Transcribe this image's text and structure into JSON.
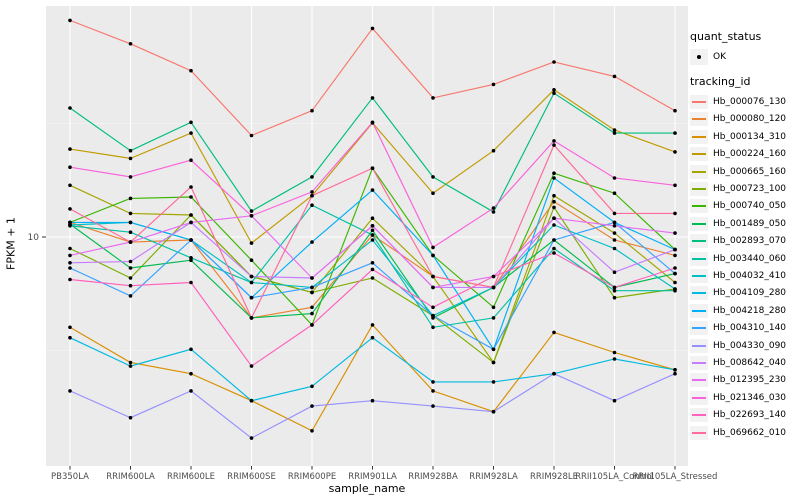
{
  "figure": {
    "y_axis": {
      "label": "FPKM + 1",
      "tick_labels": [
        "10"
      ],
      "tick_values": [
        10
      ]
    },
    "x_axis": {
      "label": "sample_name"
    },
    "legend": {
      "quant_title": "quant_status",
      "quant_items": [
        {
          "label": "OK"
        }
      ],
      "tracking_title": "tracking_id"
    }
  },
  "colors": {
    "panel_bg": "#EBEBEB",
    "grid": "#FFFFFF",
    "tick": "#333333",
    "axis_text": "#4D4D4D",
    "marker": "#000000",
    "legend_key_bg": "#F2F2F2"
  },
  "chart_data": {
    "type": "line",
    "title": "",
    "xlabel": "sample_name",
    "ylabel": "FPKM + 1",
    "y_scale": "log10",
    "ylim": [
      1,
      100
    ],
    "grid": "vertical-major-and-y10",
    "legend_position": "right",
    "marker": "black-point",
    "quant_status": "OK",
    "categories": [
      "PB350LA",
      "RRIM600LA",
      "RRIM600LE",
      "RRIM600SE",
      "RRIM600PE",
      "RRIM901LA",
      "RRIM928BA",
      "RRIM928LA",
      "RRIM928LE",
      "RRII105LA_Control",
      "RRII105LA_Stressed"
    ],
    "series": [
      {
        "name": "Hb_000076_130",
        "color": "#F8766D",
        "values": [
          90,
          71,
          54,
          28,
          36,
          83,
          41,
          47,
          59,
          51,
          36
        ]
      },
      {
        "name": "Hb_000080_120",
        "color": "#EA8331",
        "values": [
          11.6,
          9.5,
          9.7,
          4.4,
          4.9,
          10.2,
          6.7,
          6.0,
          14.3,
          9.7,
          8.3
        ]
      },
      {
        "name": "Hb_000134_310",
        "color": "#D89000",
        "values": [
          4.0,
          2.8,
          2.5,
          1.9,
          1.4,
          4.1,
          2.1,
          1.7,
          3.8,
          3.1,
          2.6
        ]
      },
      {
        "name": "Hb_000224_160",
        "color": "#C09B00",
        "values": [
          24.4,
          22.2,
          28.7,
          9.4,
          15.2,
          31.8,
          15.6,
          24.0,
          44.5,
          29.6,
          23.7
        ]
      },
      {
        "name": "Hb_000665_160",
        "color": "#A3A500",
        "values": [
          16.9,
          12.7,
          12.5,
          6.7,
          5.7,
          12.1,
          6.7,
          2.8,
          15.2,
          10.4,
          6.3
        ]
      },
      {
        "name": "Hb_000723_100",
        "color": "#7CAE00",
        "values": [
          8.9,
          6.6,
          12.5,
          6.7,
          5.7,
          6.6,
          4.5,
          2.8,
          13.5,
          5.4,
          5.9
        ]
      },
      {
        "name": "Hb_000740_050",
        "color": "#39B600",
        "values": [
          11.6,
          14.8,
          15.0,
          7.9,
          4.1,
          20.1,
          8.3,
          4.9,
          19.1,
          15.6,
          8.8
        ]
      },
      {
        "name": "Hb_001489_050",
        "color": "#00BB4E",
        "values": [
          11.4,
          7.3,
          7.9,
          4.4,
          4.6,
          10.7,
          4.4,
          6.0,
          9.7,
          6.0,
          6.9
        ]
      },
      {
        "name": "Hb_002893_070",
        "color": "#00BF7D",
        "values": [
          37,
          24,
          32,
          13,
          18.4,
          41,
          18.4,
          12.9,
          43,
          28.7,
          28.7
        ]
      },
      {
        "name": "Hb_003440_060",
        "color": "#00C1A3",
        "values": [
          11.2,
          10.5,
          8.1,
          6.3,
          13.8,
          10.2,
          4.0,
          4.4,
          8.9,
          5.8,
          5.8
        ]
      },
      {
        "name": "Hb_004032_410",
        "color": "#00BFC4",
        "values": [
          11.3,
          11.6,
          9.7,
          6.3,
          6.0,
          9.7,
          4.5,
          6.0,
          11.3,
          8.9,
          5.9
        ]
      },
      {
        "name": "Hb_004109_280",
        "color": "#00BAE0",
        "values": [
          3.6,
          2.7,
          3.2,
          1.9,
          2.2,
          3.6,
          2.3,
          2.3,
          2.5,
          2.9,
          2.6
        ]
      },
      {
        "name": "Hb_004218_280",
        "color": "#00B0F6",
        "values": [
          11.6,
          11.6,
          9.7,
          5.4,
          9.5,
          16.1,
          8.3,
          3.2,
          18.2,
          11.6,
          8.8
        ]
      },
      {
        "name": "Hb_004310_140",
        "color": "#35A2FF",
        "values": [
          7.3,
          5.5,
          9.7,
          5.4,
          6.0,
          7.7,
          4.5,
          3.2,
          9.7,
          11.6,
          6.9
        ]
      },
      {
        "name": "Hb_004330_090",
        "color": "#9590FF",
        "values": [
          2.1,
          1.6,
          2.1,
          1.3,
          1.8,
          1.9,
          1.8,
          1.7,
          2.5,
          1.9,
          2.5
        ]
      },
      {
        "name": "Hb_008642_040",
        "color": "#C77CFF",
        "values": [
          7.7,
          7.8,
          11.6,
          6.7,
          6.6,
          11.2,
          6.0,
          6.0,
          12.1,
          7.0,
          8.8
        ]
      },
      {
        "name": "Hb_012395_230",
        "color": "#E76BF3",
        "values": [
          8.3,
          9.5,
          11.6,
          12.4,
          6.6,
          11.2,
          6.0,
          6.7,
          12.1,
          11.2,
          10.4
        ]
      },
      {
        "name": "Hb_021346_030",
        "color": "#FA62DB",
        "values": [
          20.3,
          18.4,
          21.8,
          12.4,
          15.8,
          32,
          9.0,
          13.4,
          26.5,
          18.2,
          16.9
        ]
      },
      {
        "name": "Hb_022693_140",
        "color": "#FF62BC",
        "values": [
          6.5,
          6.1,
          6.3,
          2.7,
          4.1,
          7.2,
          4.9,
          6.7,
          8.5,
          6.0,
          7.3
        ]
      },
      {
        "name": "Hb_069662_010",
        "color": "#FF6A98",
        "values": [
          13.3,
          9.5,
          16.6,
          4.4,
          15.2,
          20.1,
          6.7,
          6.0,
          25.4,
          12.7,
          12.7
        ]
      }
    ]
  }
}
